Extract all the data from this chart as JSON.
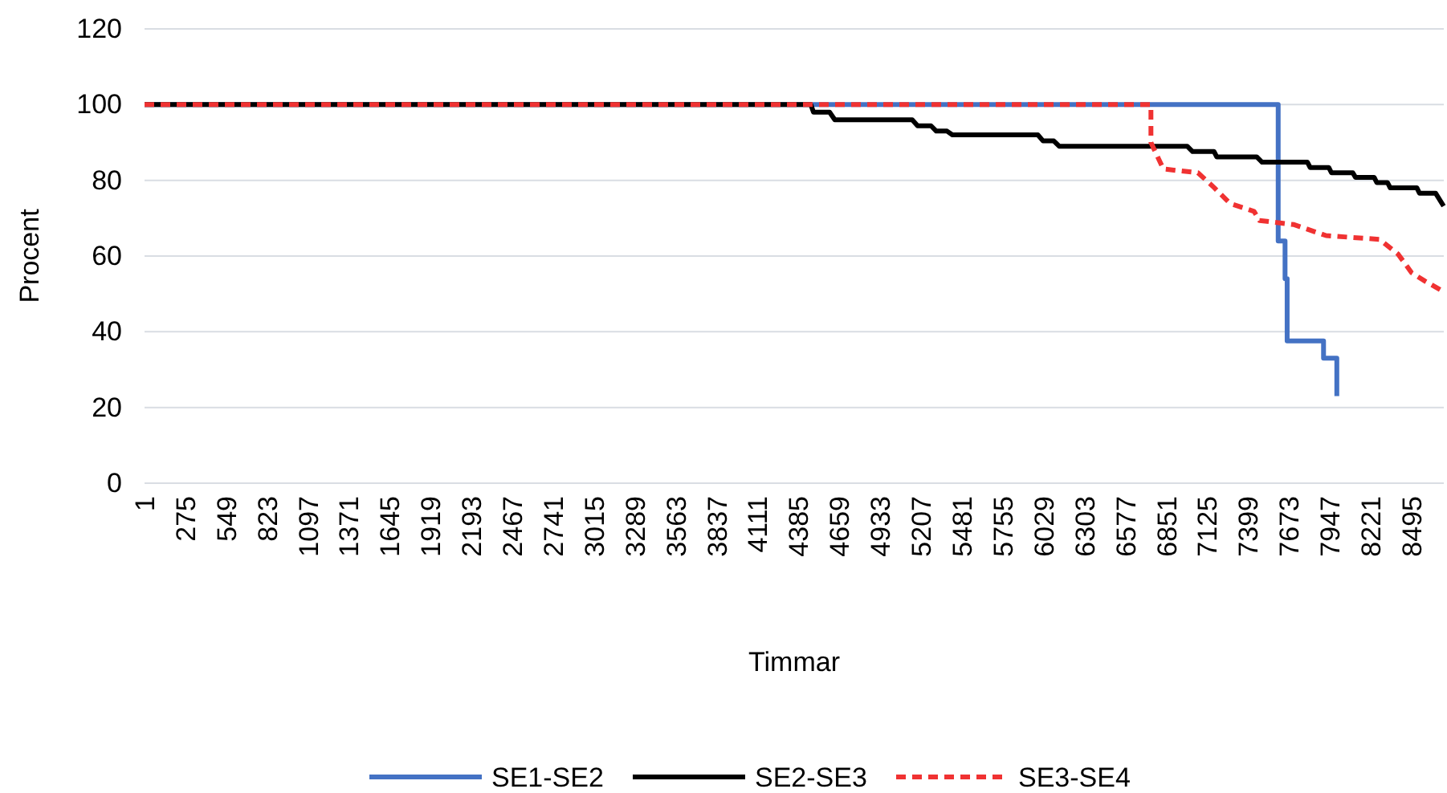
{
  "chart_data": {
    "type": "line",
    "xlabel": "Timmar",
    "ylabel": "Procent",
    "xlim": [
      1,
      8710
    ],
    "xticks": [
      1,
      275,
      549,
      823,
      1097,
      1371,
      1645,
      1919,
      2193,
      2467,
      2741,
      3015,
      3289,
      3563,
      3837,
      4111,
      4385,
      4659,
      4933,
      5207,
      5481,
      5755,
      6029,
      6303,
      6577,
      6851,
      7125,
      7399,
      7673,
      7947,
      8221,
      8495
    ],
    "ylim": [
      0,
      120
    ],
    "yticks": [
      0,
      20,
      40,
      60,
      80,
      100,
      120
    ],
    "grid": "y",
    "legend": "bottom",
    "series": [
      {
        "name": "SE1-SE2",
        "color": "#4472c4",
        "line_style": "solid",
        "x": [
          1,
          7600,
          7600,
          7646,
          7646,
          7660,
          7660,
          7904,
          7904,
          7993,
          7993
        ],
        "values": [
          100,
          100,
          64,
          64,
          54,
          54,
          37.6,
          37.6,
          33,
          33,
          23
        ]
      },
      {
        "name": "SE2-SE3",
        "color": "#000000",
        "line_style": "solid",
        "x": [
          1,
          4467,
          4485,
          4593,
          4628,
          5147,
          5183,
          5273,
          5308,
          5380,
          5416,
          5989,
          6024,
          6096,
          6132,
          6990,
          7026,
          7170,
          7188,
          7456,
          7492,
          7796,
          7814,
          7939,
          7957,
          8100,
          8118,
          8243,
          8261,
          8333,
          8351,
          8530,
          8547,
          8655,
          8709
        ],
        "values": [
          100,
          100,
          98,
          98,
          96,
          96,
          94.4,
          94.4,
          93,
          93,
          92,
          92,
          90.4,
          90.4,
          89,
          89,
          87.6,
          87.6,
          86.2,
          86.2,
          84.8,
          84.8,
          83.4,
          83.4,
          82,
          82,
          80.8,
          80.8,
          79.4,
          79.4,
          78,
          78,
          76.6,
          76.6,
          73.2
        ]
      },
      {
        "name": "SE3-SE4",
        "color": "#f03232",
        "line_style": "dashed",
        "x": [
          1,
          6747,
          6747,
          6830,
          7062,
          7170,
          7277,
          7438,
          7474,
          7706,
          7921,
          8279,
          8404,
          8494,
          8583,
          8709
        ],
        "values": [
          100,
          100,
          90,
          83,
          82,
          78.1,
          73.9,
          71.8,
          69.4,
          68.3,
          65.4,
          64.4,
          60.5,
          55.6,
          53.4,
          50.6
        ]
      }
    ]
  }
}
